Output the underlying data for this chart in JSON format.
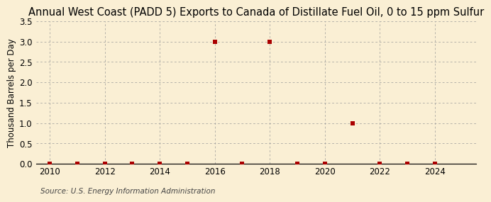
{
  "title": "Annual West Coast (PADD 5) Exports to Canada of Distillate Fuel Oil, 0 to 15 ppm Sulfur",
  "ylabel": "Thousand Barrels per Day",
  "source": "Source: U.S. Energy Information Administration",
  "background_color": "#faefd4",
  "years": [
    2010,
    2011,
    2012,
    2013,
    2014,
    2015,
    2016,
    2017,
    2018,
    2019,
    2020,
    2021,
    2022,
    2023,
    2024
  ],
  "values": [
    0.0,
    0.0,
    0.0,
    0.0,
    0.0,
    0.0,
    3.0,
    0.0,
    3.0,
    0.0,
    0.0,
    1.0,
    0.0,
    0.0,
    0.0
  ],
  "marker_color": "#aa0000",
  "xlim": [
    2009.5,
    2025.5
  ],
  "ylim": [
    0.0,
    3.5
  ],
  "yticks": [
    0.0,
    0.5,
    1.0,
    1.5,
    2.0,
    2.5,
    3.0,
    3.5
  ],
  "xticks": [
    2010,
    2012,
    2014,
    2016,
    2018,
    2020,
    2022,
    2024
  ],
  "title_fontsize": 10.5,
  "axis_fontsize": 8.5,
  "tick_fontsize": 8.5,
  "source_fontsize": 7.5
}
